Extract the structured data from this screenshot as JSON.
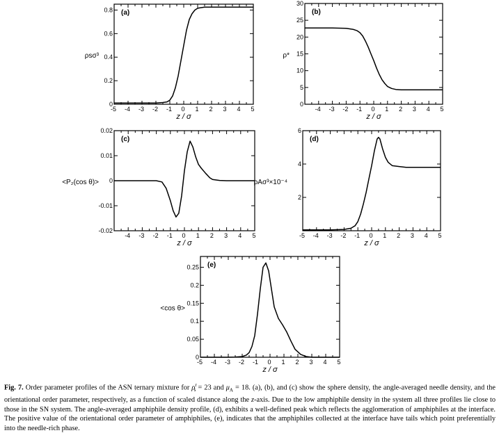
{
  "figure": {
    "caption": {
      "label": "Fig. 7.",
      "text_1": " Order parameter profiles of the ASN ternary mixture for ",
      "rho_symbol": "ρ",
      "rho_sup": "r",
      "rho_sub": "s",
      "cond_1": " = 23 and ",
      "mu_symbol": "μ",
      "mu_sub": "A",
      "cond_2": " = 18. (a), (b), and (c) show the sphere density, the angle-averaged needle density, and the orientational order parameter, respectively, as a function of scaled distance along the ",
      "z_axis": "z",
      "text_2": "-axis. Due to the low amphiphile density in the system all three profiles lie close to those in the SN system. The angle-averaged amphiphile density profile, (d), exhibits a well-defined peak which reflects the agglomeration of amphiphiles at the interface. The positive value of the orientational order parameter of amphiphiles, (e), indicates that the amphiphiles collected at the interface have tails which point preferentially into the needle-rich phase."
    }
  },
  "chart_data": [
    {
      "panel": "(a)",
      "type": "line",
      "xlabel": "z / σ",
      "ylabel": "ρsσ³",
      "xlim": [
        -5,
        5
      ],
      "ylim": [
        0,
        0.85
      ],
      "xticks": [
        "-5",
        "-4",
        "-3",
        "-2",
        "-1",
        "0",
        "1",
        "2",
        "3",
        "4",
        "5"
      ],
      "yticks": [
        {
          "v": 0,
          "l": "0"
        },
        {
          "v": 0.2,
          "l": "0.2"
        },
        {
          "v": 0.4,
          "l": "0.4"
        },
        {
          "v": 0.6,
          "l": "0.6"
        },
        {
          "v": 0.8,
          "l": "0.8"
        }
      ],
      "x": [
        -5,
        -3,
        -2,
        -1.5,
        -1.2,
        -1,
        -0.8,
        -0.6,
        -0.4,
        -0.2,
        0,
        0.2,
        0.4,
        0.6,
        0.8,
        1,
        1.2,
        1.5,
        2,
        3,
        5
      ],
      "y": [
        0.01,
        0.01,
        0.01,
        0.015,
        0.02,
        0.035,
        0.07,
        0.14,
        0.24,
        0.37,
        0.5,
        0.63,
        0.72,
        0.77,
        0.8,
        0.815,
        0.82,
        0.825,
        0.825,
        0.825,
        0.825
      ]
    },
    {
      "panel": "(b)",
      "type": "line",
      "xlabel": "z / σ",
      "ylabel": "ρ*",
      "xlim": [
        -5,
        5
      ],
      "ylim": [
        0,
        30
      ],
      "xticks": [
        "-4",
        "-3",
        "-2",
        "-1",
        "0",
        "1",
        "2",
        "3",
        "4",
        "5"
      ],
      "yticks": [
        {
          "v": 0,
          "l": "0"
        },
        {
          "v": 5,
          "l": "5"
        },
        {
          "v": 10,
          "l": "10"
        },
        {
          "v": 15,
          "l": "15"
        },
        {
          "v": 20,
          "l": "20"
        },
        {
          "v": 25,
          "l": "25"
        },
        {
          "v": 30,
          "l": "30"
        }
      ],
      "x": [
        -5,
        -3,
        -2,
        -1.5,
        -1.2,
        -1,
        -0.8,
        -0.6,
        -0.4,
        -0.2,
        0,
        0.2,
        0.4,
        0.6,
        0.8,
        1,
        1.3,
        1.6,
        2,
        3,
        5
      ],
      "y": [
        22.7,
        22.7,
        22.6,
        22.3,
        21.9,
        21.3,
        20.3,
        18.8,
        17,
        15,
        13,
        10.8,
        8.9,
        7.3,
        6.2,
        5.3,
        4.7,
        4.4,
        4.3,
        4.3,
        4.3
      ]
    },
    {
      "panel": "(c)",
      "type": "line",
      "xlabel": "z / σ",
      "ylabel": "<P₂(cos θ)>",
      "xlim": [
        -5,
        5
      ],
      "ylim": [
        -0.02,
        0.02
      ],
      "xticks": [
        "-4",
        "-3",
        "-2",
        "-1",
        "0",
        "1",
        "2",
        "3",
        "4",
        "5"
      ],
      "yticks": [
        {
          "v": -0.02,
          "l": "-0.02"
        },
        {
          "v": -0.01,
          "l": "-0.01"
        },
        {
          "v": 0,
          "l": "0"
        },
        {
          "v": 0.01,
          "l": "0.01"
        },
        {
          "v": 0.02,
          "l": "0.02"
        }
      ],
      "x": [
        -5,
        -3,
        -2,
        -1.6,
        -1.3,
        -1,
        -0.8,
        -0.6,
        -0.4,
        -0.2,
        0,
        0.2,
        0.4,
        0.6,
        0.8,
        1,
        1.2,
        1.5,
        1.8,
        2,
        2.5,
        3,
        5
      ],
      "y": [
        0,
        0,
        0,
        -0.0005,
        -0.003,
        -0.008,
        -0.012,
        -0.0145,
        -0.013,
        -0.006,
        0.004,
        0.0115,
        0.0158,
        0.0135,
        0.0095,
        0.0065,
        0.005,
        0.003,
        0.0012,
        0.0005,
        0.0001,
        0,
        0
      ]
    },
    {
      "panel": "(d)",
      "type": "line",
      "xlabel": "z / σ",
      "ylabel": "ρAσ³×10⁻⁴",
      "xlim": [
        -5,
        5
      ],
      "ylim": [
        0,
        6
      ],
      "xticks": [
        "-5",
        "-4",
        "-3",
        "-2",
        "-1",
        "0",
        "1",
        "2",
        "3",
        "4",
        "5"
      ],
      "yticks": [
        {
          "v": 2,
          "l": "2"
        },
        {
          "v": 4,
          "l": "4"
        },
        {
          "v": 6,
          "l": "6"
        }
      ],
      "x": [
        -5,
        -3,
        -2,
        -1.5,
        -1.2,
        -1,
        -0.8,
        -0.6,
        -0.4,
        -0.2,
        0,
        0.2,
        0.4,
        0.5,
        0.6,
        0.8,
        1,
        1.2,
        1.5,
        2,
        2.5,
        3,
        5
      ],
      "y": [
        0.05,
        0.05,
        0.08,
        0.15,
        0.3,
        0.55,
        1,
        1.6,
        2.3,
        3.1,
        3.9,
        4.8,
        5.5,
        5.6,
        5.5,
        4.9,
        4.4,
        4.1,
        3.9,
        3.85,
        3.8,
        3.8,
        3.8
      ]
    },
    {
      "panel": "(e)",
      "type": "line",
      "xlabel": "z / σ",
      "ylabel": "<cos θ>",
      "xlim": [
        -5,
        5
      ],
      "ylim": [
        0,
        0.28
      ],
      "xticks": [
        "-5",
        "-4",
        "-3",
        "-2",
        "-1",
        "0",
        "1",
        "2",
        "3",
        "4",
        "5"
      ],
      "yticks": [
        {
          "v": 0,
          "l": "0"
        },
        {
          "v": 0.05,
          "l": "0.05"
        },
        {
          "v": 0.1,
          "l": "0.1"
        },
        {
          "v": 0.15,
          "l": "0.15"
        },
        {
          "v": 0.2,
          "l": "0.2"
        },
        {
          "v": 0.25,
          "l": "0.25"
        }
      ],
      "x": [
        -5,
        -3,
        -2.5,
        -2,
        -1.7,
        -1.5,
        -1.3,
        -1.1,
        -0.9,
        -0.7,
        -0.5,
        -0.3,
        -0.1,
        0.1,
        0.3,
        0.6,
        0.9,
        1.2,
        1.5,
        1.8,
        2.2,
        2.6,
        3,
        5
      ],
      "y": [
        0,
        0,
        0.0005,
        0.002,
        0.006,
        0.013,
        0.03,
        0.06,
        0.12,
        0.19,
        0.25,
        0.262,
        0.24,
        0.19,
        0.14,
        0.108,
        0.09,
        0.07,
        0.045,
        0.022,
        0.008,
        0.002,
        0,
        0
      ]
    }
  ]
}
